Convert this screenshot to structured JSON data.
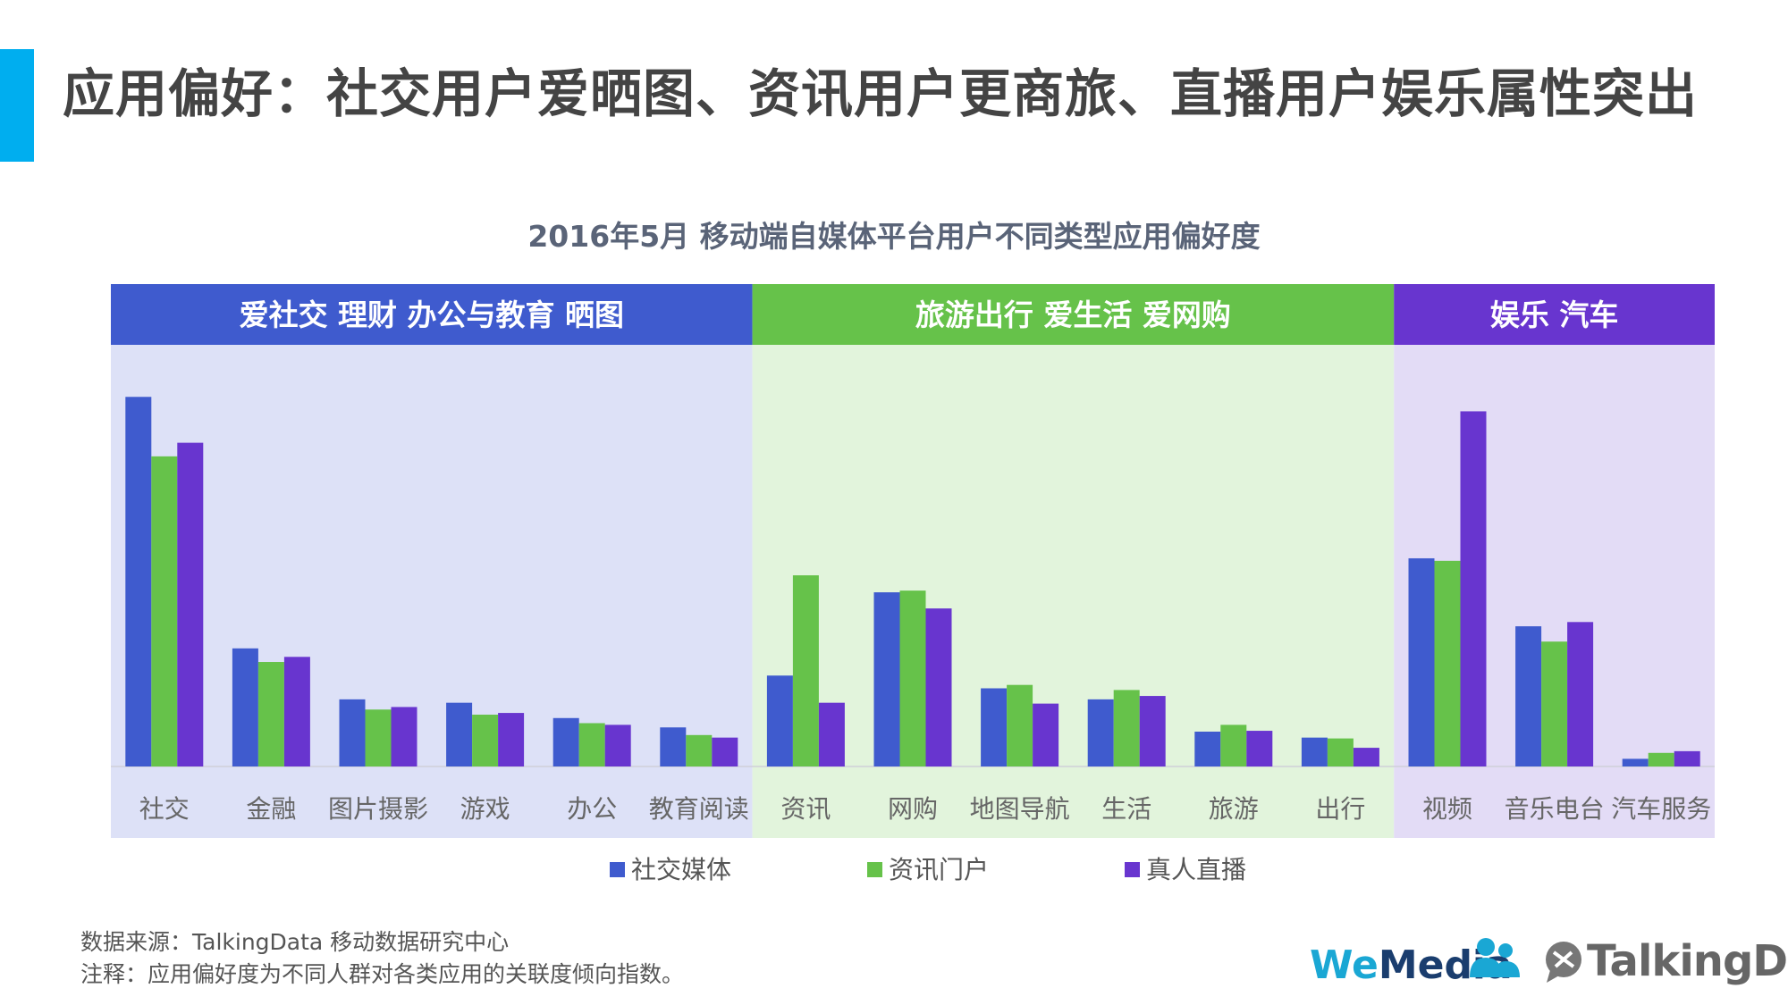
{
  "page": {
    "title": "应用偏好：社交用户爱晒图、资讯用户更商旅、直播用户娱乐属性突出",
    "accent_color": "#00AEEF"
  },
  "source": {
    "line1": "数据来源：TalkingData 移动数据研究中心",
    "line2": "注释：应用偏好度为不同人群对各类应用的关联度倾向指数。"
  },
  "logos": {
    "wemedia_we": "We",
    "wemedia_media": "Media",
    "wemedia_icon": "people-icon",
    "talkingdata": "TalkingData",
    "talkingdata_icon": "speech-bubble-icon"
  },
  "chart_data": {
    "type": "bar",
    "title": "2016年5月 移动端自媒体平台用户不同类型应用偏好度",
    "categories": [
      "社交",
      "金融",
      "图片摄影",
      "游戏",
      "办公",
      "教育阅读",
      "资讯",
      "网购",
      "地图导航",
      "生活",
      "旅游",
      "出行",
      "视频",
      "音乐电台",
      "汽车服务"
    ],
    "series": [
      {
        "name": "社交媒体",
        "color": "#3F5BCE",
        "values": [
          435,
          139,
          79,
          75,
          57,
          46,
          107,
          205,
          92,
          79,
          41,
          34,
          245,
          165,
          9
        ]
      },
      {
        "name": "资讯门户",
        "color": "#66C24A",
        "values": [
          365,
          123,
          67,
          61,
          51,
          37,
          225,
          207,
          96,
          90,
          49,
          33,
          242,
          147,
          16
        ]
      },
      {
        "name": "真人直播",
        "color": "#6835CF",
        "values": [
          381,
          129,
          70,
          63,
          49,
          34,
          75,
          186,
          74,
          83,
          42,
          22,
          418,
          170,
          18
        ]
      }
    ],
    "ylim": [
      0,
      450
    ],
    "groups": [
      {
        "label": "爱社交 理财 办公与教育 晒图",
        "start": 0,
        "end": 5,
        "header_color": "#3F5BCE",
        "bg_color": "#DDE1F7"
      },
      {
        "label": "旅游出行 爱生活 爱网购",
        "start": 6,
        "end": 11,
        "header_color": "#66C24A",
        "bg_color": "#E2F4DC"
      },
      {
        "label": "娱乐 汽车",
        "start": 12,
        "end": 14,
        "header_color": "#6835CF",
        "bg_color": "#E3DCF6"
      }
    ],
    "legend_position": "bottom",
    "grid": false
  }
}
